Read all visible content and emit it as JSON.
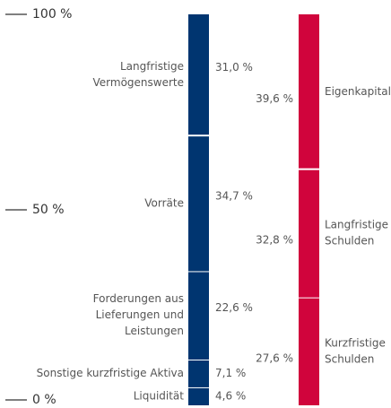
{
  "chart_data": {
    "type": "stacked_bar",
    "ylim": [
      0,
      100
    ],
    "yticks": [
      {
        "value": 0,
        "label": "0 %"
      },
      {
        "value": 50,
        "label": "50 %"
      },
      {
        "value": 100,
        "label": "100 %"
      }
    ],
    "bars": [
      {
        "color": "#003570",
        "segments": [
          {
            "name_lines": [
              "Liquidität"
            ],
            "value": 4.6,
            "value_label": "4,6 %"
          },
          {
            "name_lines": [
              "Sonstige kurzfristige Aktiva"
            ],
            "value": 7.1,
            "value_label": "7,1 %"
          },
          {
            "name_lines": [
              "Forderungen aus",
              "Lieferungen und",
              "Leistungen"
            ],
            "value": 22.6,
            "value_label": "22,6 %"
          },
          {
            "name_lines": [
              "Vorräte"
            ],
            "value": 34.7,
            "value_label": "34,7 %"
          },
          {
            "name_lines": [
              "Langfristige",
              "Vermögenswerte"
            ],
            "value": 31.0,
            "value_label": "31,0 %"
          }
        ]
      },
      {
        "color": "#d0043c",
        "segments": [
          {
            "name_lines": [
              "Kurzfristige",
              "Schulden"
            ],
            "value": 27.6,
            "value_label": "27,6 %"
          },
          {
            "name_lines": [
              "Langfristige",
              "Schulden"
            ],
            "value": 32.8,
            "value_label": "32,8 %"
          },
          {
            "name_lines": [
              "Eigenkapital"
            ],
            "value": 39.6,
            "value_label": "39,6 %"
          }
        ]
      }
    ]
  }
}
